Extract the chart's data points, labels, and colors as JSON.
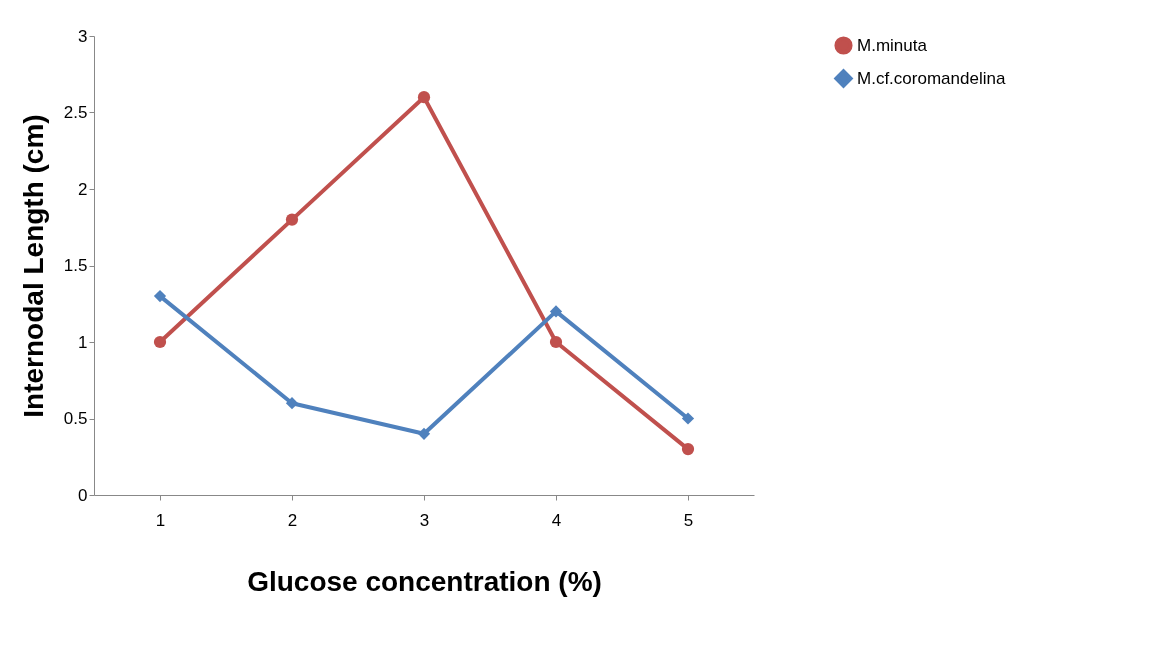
{
  "chart_data": {
    "type": "line",
    "xlabel": "Glucose concentration (%)",
    "ylabel": "Internodal Length (cm)",
    "categories": [
      "1",
      "2",
      "3",
      "4",
      "5"
    ],
    "series": [
      {
        "name": "M.minuta",
        "color": "#c0504d",
        "marker": "circle",
        "values": [
          1,
          1.8,
          2.6,
          1,
          0.3
        ]
      },
      {
        "name": "M.cf.coromandelina",
        "color": "#4f81bd",
        "marker": "diamond",
        "values": [
          1.3,
          0.6,
          0.4,
          1.2,
          0.5
        ]
      }
    ],
    "ylim": [
      0,
      3
    ],
    "yticks": [
      0,
      0.5,
      1,
      1.5,
      2,
      2.5,
      3
    ],
    "grid": false,
    "legend": "right",
    "line_style": "solid"
  }
}
